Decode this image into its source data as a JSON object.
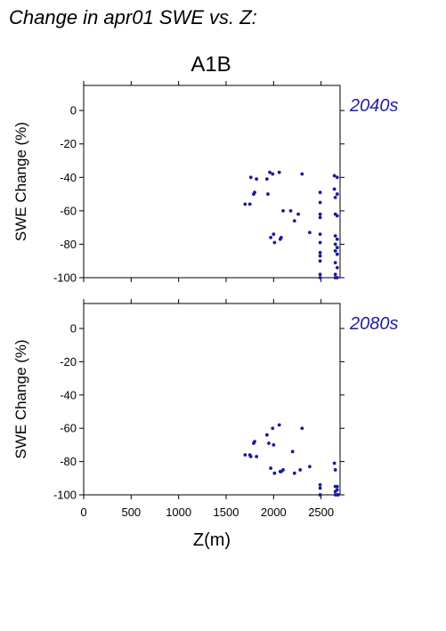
{
  "chart_data": [
    {
      "type": "scatter",
      "title": "Change in apr01 SWE vs. Z:",
      "subtitle": "A1B",
      "period": "2040s",
      "xlabel": "",
      "ylabel": "SWE Change (%)",
      "xlim": [
        0,
        2700
      ],
      "ylim": [
        -100,
        15
      ],
      "xticks": [
        0,
        500,
        1000,
        1500,
        2000,
        2500
      ],
      "yticks": [
        0,
        -20,
        -40,
        -60,
        -80,
        -100
      ],
      "color": "#1a1a9c",
      "points": [
        [
          1700,
          -56
        ],
        [
          1750,
          -56
        ],
        [
          1760,
          -40
        ],
        [
          1790,
          -50
        ],
        [
          1800,
          -49
        ],
        [
          1820,
          -41
        ],
        [
          1930,
          -41
        ],
        [
          1940,
          -50
        ],
        [
          1960,
          -37
        ],
        [
          1970,
          -76
        ],
        [
          1990,
          -38
        ],
        [
          2000,
          -74
        ],
        [
          2010,
          -79
        ],
        [
          2060,
          -37
        ],
        [
          2070,
          -77
        ],
        [
          2080,
          -76
        ],
        [
          2100,
          -60
        ],
        [
          2180,
          -60
        ],
        [
          2220,
          -66
        ],
        [
          2260,
          -62
        ],
        [
          2300,
          -38
        ],
        [
          2380,
          -73
        ],
        [
          2490,
          -49
        ],
        [
          2490,
          -55
        ],
        [
          2490,
          -62
        ],
        [
          2490,
          -64
        ],
        [
          2490,
          -74
        ],
        [
          2490,
          -79
        ],
        [
          2490,
          -85
        ],
        [
          2490,
          -87
        ],
        [
          2490,
          -90
        ],
        [
          2490,
          -98
        ],
        [
          2490,
          -100
        ],
        [
          2640,
          -39
        ],
        [
          2640,
          -47
        ],
        [
          2650,
          -52
        ],
        [
          2650,
          -62
        ],
        [
          2650,
          -75
        ],
        [
          2650,
          -80
        ],
        [
          2650,
          -84
        ],
        [
          2650,
          -91
        ],
        [
          2650,
          -98
        ],
        [
          2650,
          -100
        ],
        [
          2670,
          -40
        ],
        [
          2670,
          -50
        ],
        [
          2670,
          -63
        ],
        [
          2670,
          -77
        ],
        [
          2670,
          -82
        ],
        [
          2670,
          -86
        ],
        [
          2670,
          -94
        ],
        [
          2670,
          -100
        ]
      ]
    },
    {
      "type": "scatter",
      "period": "2080s",
      "xlabel": "Z(m)",
      "ylabel": "SWE Change (%)",
      "xlim": [
        0,
        2700
      ],
      "ylim": [
        -100,
        15
      ],
      "xticks": [
        0,
        500,
        1000,
        1500,
        2000,
        2500
      ],
      "xticklabels": [
        "0",
        "500",
        "1000",
        "1500",
        "2000",
        "2500"
      ],
      "yticks": [
        0,
        -20,
        -40,
        -60,
        -80,
        -100
      ],
      "color": "#1a1a9c",
      "points": [
        [
          1700,
          -76
        ],
        [
          1750,
          -76
        ],
        [
          1760,
          -77
        ],
        [
          1790,
          -69
        ],
        [
          1800,
          -68
        ],
        [
          1820,
          -77
        ],
        [
          1930,
          -64
        ],
        [
          1950,
          -69
        ],
        [
          1970,
          -84
        ],
        [
          1990,
          -60
        ],
        [
          2000,
          -70
        ],
        [
          2010,
          -87
        ],
        [
          2060,
          -58
        ],
        [
          2070,
          -86
        ],
        [
          2080,
          -86
        ],
        [
          2100,
          -85
        ],
        [
          2200,
          -74
        ],
        [
          2220,
          -87
        ],
        [
          2280,
          -85
        ],
        [
          2300,
          -60
        ],
        [
          2380,
          -83
        ],
        [
          2490,
          -94
        ],
        [
          2490,
          -96
        ],
        [
          2490,
          -100
        ],
        [
          2490,
          -100
        ],
        [
          2640,
          -81
        ],
        [
          2650,
          -85
        ],
        [
          2650,
          -95
        ],
        [
          2650,
          -98
        ],
        [
          2650,
          -100
        ],
        [
          2670,
          -95
        ],
        [
          2670,
          -97
        ],
        [
          2670,
          -100
        ],
        [
          2680,
          -100
        ]
      ]
    }
  ]
}
